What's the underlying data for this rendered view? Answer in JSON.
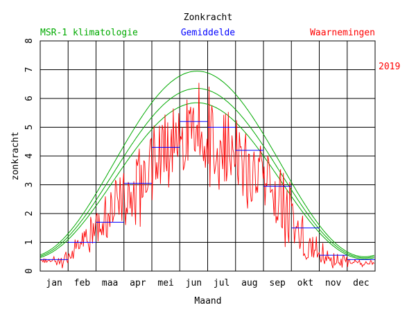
{
  "chart_data": {
    "type": "line",
    "title": "Zonkracht",
    "xlabel": "Maand",
    "ylabel": "zonkracht",
    "year_label": "2019",
    "ylim": [
      0,
      8
    ],
    "yticks": [
      "0",
      "1",
      "2",
      "3",
      "4",
      "5",
      "6",
      "7",
      "8"
    ],
    "xlim": [
      0,
      12
    ],
    "months": [
      "jan",
      "feb",
      "maa",
      "apr",
      "mei",
      "jun",
      "jul",
      "aug",
      "sep",
      "okt",
      "nov",
      "dec"
    ],
    "grid": true,
    "legend": {
      "climatology": "MSR-1 klimatologie",
      "average": "Gemiddelde",
      "observations": "Waarnemingen"
    },
    "colors": {
      "climatology": "#00aa00",
      "average": "#0000ff",
      "observations": "#ff0000",
      "text": "#000000"
    },
    "climatology": {
      "peak_day": 172,
      "lower": {
        "min": 0.42,
        "max": 5.85
      },
      "mid": {
        "min": 0.46,
        "max": 6.35
      },
      "upper": {
        "min": 0.5,
        "max": 6.95
      }
    },
    "monthly_means": [
      0.4,
      1.0,
      1.7,
      3.05,
      4.3,
      5.2,
      5.0,
      4.2,
      2.95,
      1.5,
      0.55,
      0.4
    ],
    "observation_anchors": {
      "days": [
        1,
        15,
        31,
        45,
        59,
        74,
        90,
        105,
        120,
        135,
        151,
        166,
        181,
        196,
        212,
        227,
        243,
        258,
        273,
        288,
        304,
        319,
        334,
        349,
        365
      ],
      "values": [
        0.35,
        0.4,
        0.55,
        1.15,
        1.6,
        2.1,
        2.9,
        3.3,
        3.9,
        4.6,
        5.1,
        5.5,
        5.6,
        4.5,
        4.8,
        3.7,
        3.5,
        3.0,
        2.4,
        1.3,
        0.8,
        0.5,
        0.4,
        0.3,
        0.35
      ]
    },
    "observation_noise": [
      0.05,
      0.1,
      0.25,
      0.35,
      0.45,
      0.65,
      0.8,
      0.9,
      1.0,
      1.1,
      1.2,
      1.2,
      1.25,
      1.2,
      1.1,
      1.1,
      1.0,
      0.9,
      0.8,
      0.6,
      0.35,
      0.2,
      0.12,
      0.08,
      0.05
    ]
  }
}
